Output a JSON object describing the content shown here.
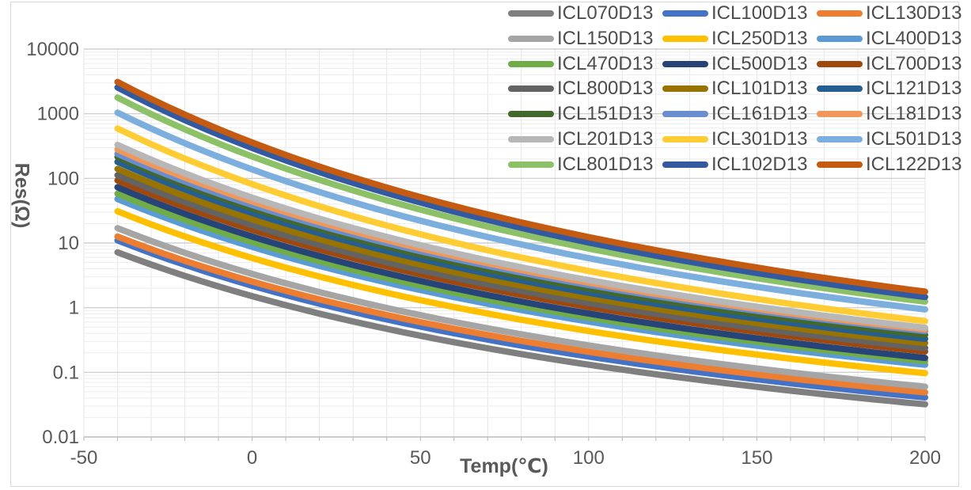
{
  "chart_data": {
    "type": "line",
    "title": "",
    "xlabel": "Temp(℃)",
    "ylabel": "Res(Ω)",
    "x_axis": {
      "min": -50,
      "max": 200,
      "ticks": [
        -50,
        0,
        50,
        100,
        150,
        200
      ],
      "gridline_step_c": 10
    },
    "y_axis": {
      "scale": "log10",
      "min": 0.01,
      "max": 10000,
      "ticks": [
        "10000",
        "1000",
        "100",
        "10",
        "1",
        "0.1",
        "0.01"
      ],
      "minor_gridlines": true
    },
    "legend": {
      "position": "top-right",
      "columns": 3,
      "rows": 7
    },
    "curve_model": "log10(R) linear in 1/(T+273.15), anchored at the two endpoints below; curves plotted from -40C to 200C",
    "series": [
      {
        "name": "ICL070D13",
        "color": "#7F7F7F",
        "r_ohm_at_minus40c": 7.2,
        "r_ohm_at_200c": 0.032
      },
      {
        "name": "ICL100D13",
        "color": "#4472C4",
        "r_ohm_at_minus40c": 11,
        "r_ohm_at_200c": 0.041
      },
      {
        "name": "ICL130D13",
        "color": "#ED7D31",
        "r_ohm_at_minus40c": 12.6,
        "r_ohm_at_200c": 0.049
      },
      {
        "name": "ICL150D13",
        "color": "#A5A5A5",
        "r_ohm_at_minus40c": 17,
        "r_ohm_at_200c": 0.06
      },
      {
        "name": "ICL250D13",
        "color": "#FFC000",
        "r_ohm_at_minus40c": 31,
        "r_ohm_at_200c": 0.097
      },
      {
        "name": "ICL400D13",
        "color": "#5B9BD5",
        "r_ohm_at_minus40c": 48,
        "r_ohm_at_200c": 0.131
      },
      {
        "name": "ICL470D13",
        "color": "#70AD47",
        "r_ohm_at_minus40c": 58,
        "r_ohm_at_200c": 0.149
      },
      {
        "name": "ICL500D13",
        "color": "#264478",
        "r_ohm_at_minus40c": 73,
        "r_ohm_at_200c": 0.167
      },
      {
        "name": "ICL700D13",
        "color": "#9E480E",
        "r_ohm_at_minus40c": 93,
        "r_ohm_at_200c": 0.21
      },
      {
        "name": "ICL800D13",
        "color": "#636363",
        "r_ohm_at_minus40c": 112,
        "r_ohm_at_200c": 0.238
      },
      {
        "name": "ICL101D13",
        "color": "#997300",
        "r_ohm_at_minus40c": 140,
        "r_ohm_at_200c": 0.283
      },
      {
        "name": "ICL121D13",
        "color": "#255E91",
        "r_ohm_at_minus40c": 180,
        "r_ohm_at_200c": 0.33
      },
      {
        "name": "ICL151D13",
        "color": "#43682B",
        "r_ohm_at_minus40c": 215,
        "r_ohm_at_200c": 0.38
      },
      {
        "name": "ICL161D13",
        "color": "#698ED0",
        "r_ohm_at_minus40c": 240,
        "r_ohm_at_200c": 0.434
      },
      {
        "name": "ICL181D13",
        "color": "#F1975A",
        "r_ohm_at_minus40c": 280,
        "r_ohm_at_200c": 0.46
      },
      {
        "name": "ICL201D13",
        "color": "#B7B7B7",
        "r_ohm_at_minus40c": 330,
        "r_ohm_at_200c": 0.49
      },
      {
        "name": "ICL301D13",
        "color": "#FFCD33",
        "r_ohm_at_minus40c": 590,
        "r_ohm_at_200c": 0.62
      },
      {
        "name": "ICL501D13",
        "color": "#7CAFDD",
        "r_ohm_at_minus40c": 1040,
        "r_ohm_at_200c": 0.94
      },
      {
        "name": "ICL801D13",
        "color": "#8CC168",
        "r_ohm_at_minus40c": 1780,
        "r_ohm_at_200c": 1.24
      },
      {
        "name": "ICL102D13",
        "color": "#335AA1",
        "r_ohm_at_minus40c": 2550,
        "r_ohm_at_200c": 1.46
      },
      {
        "name": "ICL122D13",
        "color": "#C55A11",
        "r_ohm_at_minus40c": 3100,
        "r_ohm_at_200c": 1.77
      }
    ]
  }
}
